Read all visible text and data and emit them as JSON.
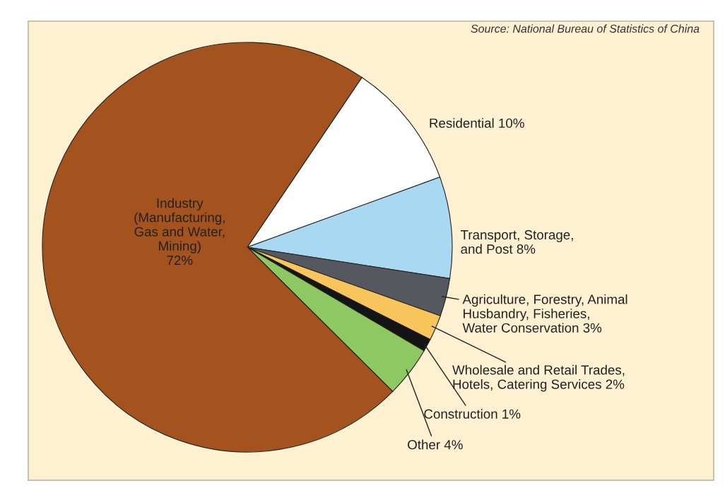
{
  "chart_data": {
    "type": "pie",
    "categories": [
      "Residential",
      "Transport, Storage,\nand Post",
      "Agriculture, Forestry, Animal\nHusbandry, Fisheries,\nWater Conservation",
      "Wholesale and Retail Trades,\nHotels, Catering Services",
      "Construction",
      "Other",
      "Industry\n(Manufacturing,\nGas and Water,\nMining)"
    ],
    "values": [
      10,
      8,
      3,
      2,
      1,
      4,
      72
    ],
    "value_labels": [
      "10%",
      "8%",
      "3%",
      "2%",
      "1%",
      "4%",
      "72%"
    ],
    "colors": [
      "#ffffff",
      "#a9d8f2",
      "#55585e",
      "#f8c45c",
      "#141414",
      "#8dc862",
      "#a4531f"
    ],
    "annotations": [
      "Source: National Bureau of Statistics of China"
    ]
  }
}
